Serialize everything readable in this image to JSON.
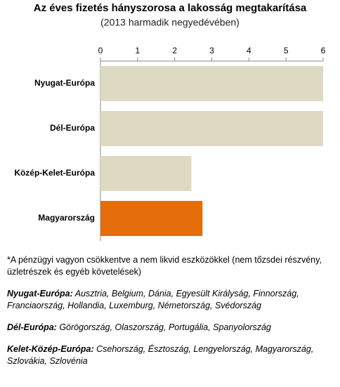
{
  "chart_data": {
    "type": "bar",
    "orientation": "horizontal",
    "title": "Az éves fizetés hányszorosa a lakosság megtakarítása",
    "subtitle": "(2013 harmadik negyedévében)",
    "categories": [
      "Nyugat-Európa",
      "Dél-Európa",
      "Közép-Kelet-Európa",
      "Magyarország"
    ],
    "values": [
      6,
      6,
      2.45,
      2.75
    ],
    "colors": [
      "#ddd9c3",
      "#ddd9c3",
      "#ddd9c3",
      "#e46c0a"
    ],
    "xlim": [
      0,
      6
    ],
    "xticks": [
      0,
      1,
      2,
      3,
      4,
      5,
      6
    ],
    "grid": false
  },
  "notes": {
    "footnote": "*A pénzügyi vagyon csökkentve a nem likvid eszközökkel (nem tőzsdei részvény, üzletrészek és egyéb követelések)",
    "groups": [
      {
        "label": "Nyugat-Európa:",
        "text": "Ausztria, Belgium, Dánia, Egyesült Királyság, Finnország, Franciaország,  Hollandia, Luxemburg, Németország,  Svédország"
      },
      {
        "label": "Dél-Európa:",
        "text": "Görögország, Olaszország, Portugália, Spanyolország"
      },
      {
        "label": "Kelet-Közép-Európa:",
        "text": "Csehország, Észtoszág, Lengyelország, Magyarország, Szlovákia, Szlovénia"
      }
    ]
  }
}
